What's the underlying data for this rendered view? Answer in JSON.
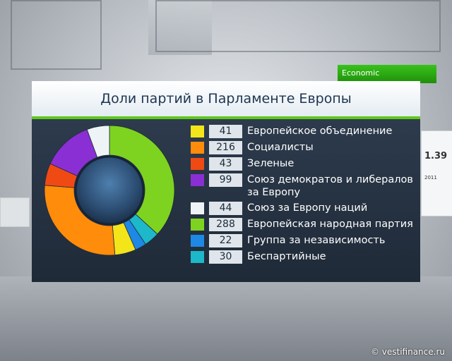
{
  "chart_data": {
    "type": "pie",
    "title": "Доли партий в Парламенте Европы",
    "categories": [
      "Европейское объединение",
      "Социалисты",
      "Зеленые",
      "Союз демократов и либералов за Европу",
      "Союз за Европу наций",
      "Европейская народная партия",
      "Группа за независимость",
      "Беспартийные"
    ],
    "values": [
      41,
      216,
      43,
      99,
      44,
      288,
      22,
      30
    ],
    "colors": [
      "#f3e51a",
      "#ff8c0a",
      "#ef4a14",
      "#8a2fd4",
      "#eef3f6",
      "#7ed321",
      "#1e88e5",
      "#1db8c9"
    ],
    "donut_order": [
      5,
      7,
      6,
      0,
      1,
      2,
      3,
      4
    ]
  },
  "background": {
    "screen_value": "1.39",
    "screen_year": "2011",
    "sign_text": "Economic"
  },
  "credit": "© vestifinance.ru"
}
